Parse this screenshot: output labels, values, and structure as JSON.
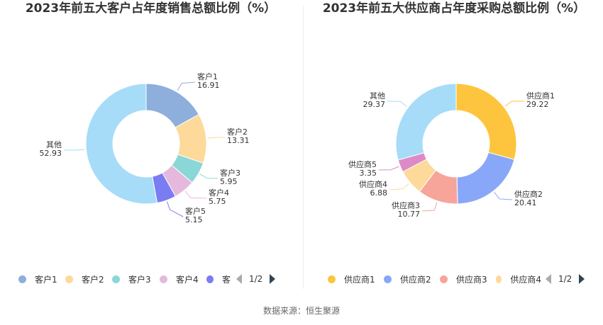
{
  "chart_data": [
    {
      "type": "pie",
      "title": "2023年前五大客户占年度销售总额比例（%）",
      "categories": [
        "客户1",
        "客户2",
        "客户3",
        "客户4",
        "客户5",
        "其他"
      ],
      "values": [
        16.91,
        13.31,
        5.95,
        5.75,
        5.15,
        52.93
      ],
      "value_labels": [
        "16.91",
        "13.31",
        "5.95",
        "5.75",
        "5.15",
        "52.93"
      ],
      "colors": [
        "#8eaedc",
        "#fdd99a",
        "#8ad7d8",
        "#e4b9dd",
        "#7a7cf2",
        "#a6dcf7"
      ],
      "legend": {
        "placement": "bottom",
        "visible_items": [
          "客户1",
          "客户2",
          "客户3",
          "客户4",
          "客"
        ],
        "page": "1/2"
      }
    },
    {
      "type": "pie",
      "title": "2023年前五大供应商占年度采购总额比例（%）",
      "categories": [
        "供应商1",
        "供应商2",
        "供应商3",
        "供应商4",
        "供应商5",
        "其他"
      ],
      "values": [
        29.22,
        20.41,
        10.77,
        6.88,
        3.35,
        29.37
      ],
      "value_labels": [
        "29.22",
        "20.41",
        "10.77",
        "6.88",
        "3.35",
        "29.37"
      ],
      "colors": [
        "#fdc53d",
        "#88a7f9",
        "#f7a49a",
        "#fdd99a",
        "#dd8bc6",
        "#a6dcf7"
      ],
      "legend": {
        "placement": "bottom",
        "visible_items": [
          "供应商1",
          "供应商2",
          "供应商3",
          "供应商4"
        ],
        "page": "1/2"
      }
    }
  ],
  "source_text": "数据来源：恒生聚源"
}
